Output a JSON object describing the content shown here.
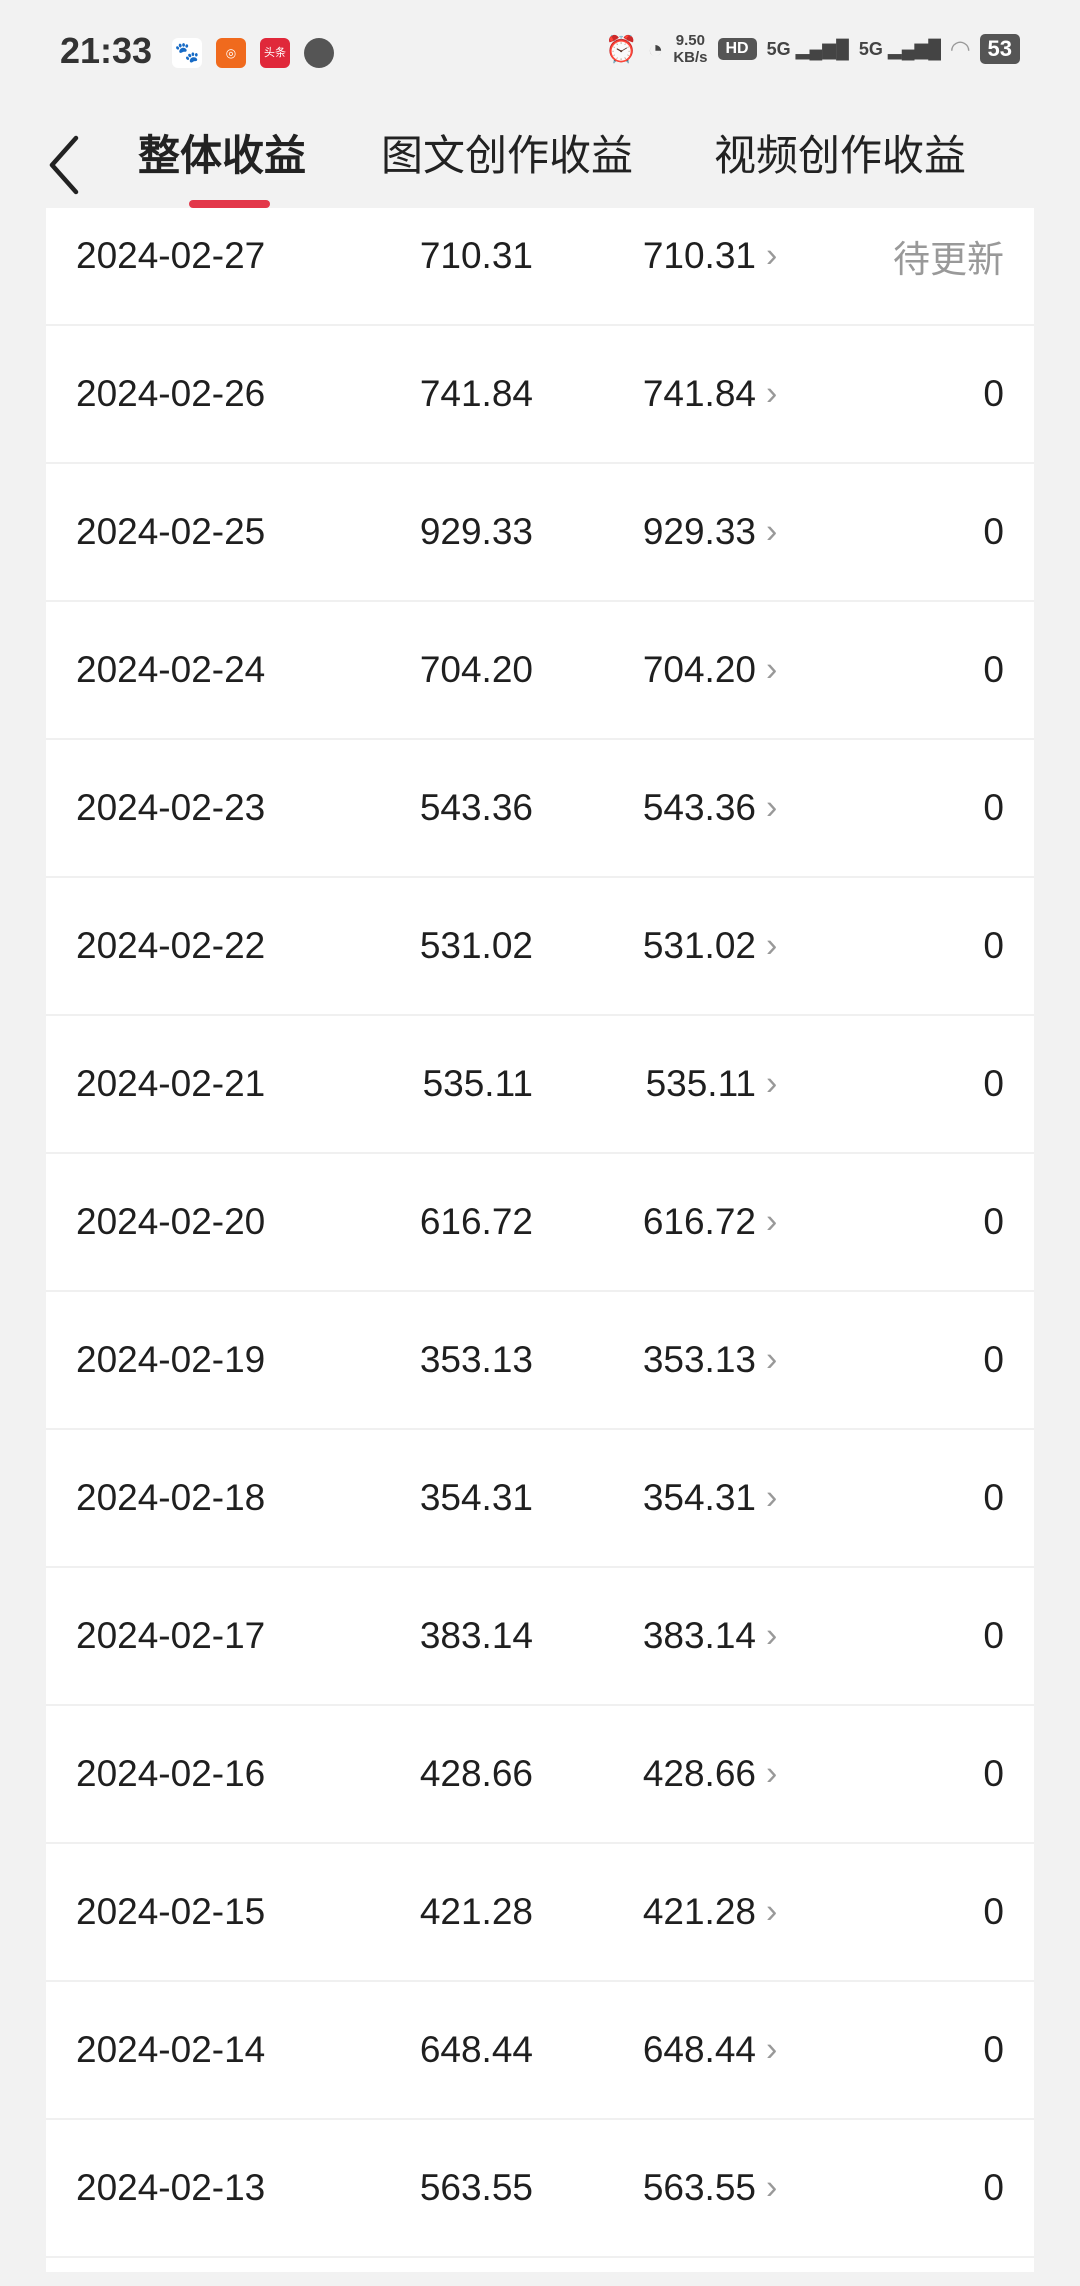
{
  "status_bar": {
    "time": "21:33",
    "network_speed": "9.50",
    "network_speed_unit": "KB/s",
    "hd_label": "HD",
    "sim1": "5G",
    "sim2": "5G",
    "battery": "53",
    "notification_icons": [
      "baidu-icon",
      "kuaishou-icon",
      "toutiao-icon",
      "message-icon"
    ],
    "toutiao_label": "头条"
  },
  "header": {
    "tabs": [
      {
        "label": "整体收益",
        "active": true
      },
      {
        "label": "图文创作收益",
        "active": false
      },
      {
        "label": "视频创作收益",
        "active": false
      }
    ],
    "accent_color": "#e3384a"
  },
  "rows": [
    {
      "date": "2024-02-27",
      "total": "710.31",
      "image_text": "710.31",
      "video": "待更新"
    },
    {
      "date": "2024-02-26",
      "total": "741.84",
      "image_text": "741.84",
      "video": "0"
    },
    {
      "date": "2024-02-25",
      "total": "929.33",
      "image_text": "929.33",
      "video": "0"
    },
    {
      "date": "2024-02-24",
      "total": "704.20",
      "image_text": "704.20",
      "video": "0"
    },
    {
      "date": "2024-02-23",
      "total": "543.36",
      "image_text": "543.36",
      "video": "0"
    },
    {
      "date": "2024-02-22",
      "total": "531.02",
      "image_text": "531.02",
      "video": "0"
    },
    {
      "date": "2024-02-21",
      "total": "535.11",
      "image_text": "535.11",
      "video": "0"
    },
    {
      "date": "2024-02-20",
      "total": "616.72",
      "image_text": "616.72",
      "video": "0"
    },
    {
      "date": "2024-02-19",
      "total": "353.13",
      "image_text": "353.13",
      "video": "0"
    },
    {
      "date": "2024-02-18",
      "total": "354.31",
      "image_text": "354.31",
      "video": "0"
    },
    {
      "date": "2024-02-17",
      "total": "383.14",
      "image_text": "383.14",
      "video": "0"
    },
    {
      "date": "2024-02-16",
      "total": "428.66",
      "image_text": "428.66",
      "video": "0"
    },
    {
      "date": "2024-02-15",
      "total": "421.28",
      "image_text": "421.28",
      "video": "0"
    },
    {
      "date": "2024-02-14",
      "total": "648.44",
      "image_text": "648.44",
      "video": "0"
    },
    {
      "date": "2024-02-13",
      "total": "563.55",
      "image_text": "563.55",
      "video": "0"
    }
  ]
}
